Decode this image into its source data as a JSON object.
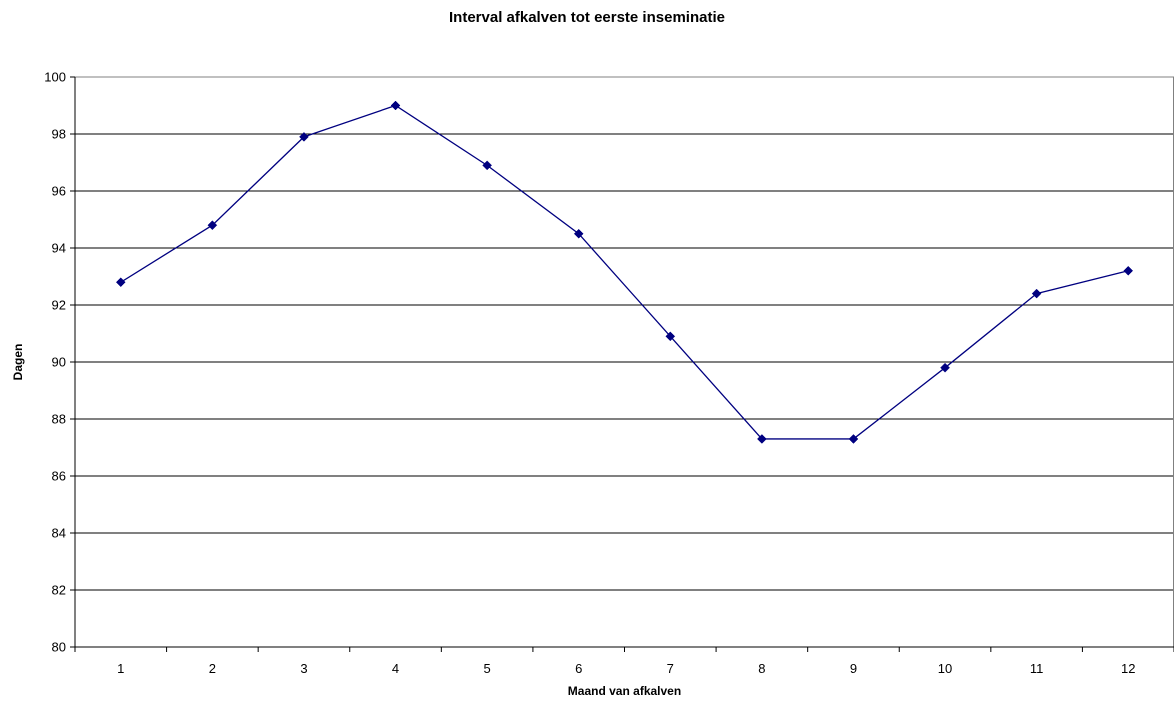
{
  "chart_data": {
    "type": "line",
    "title": "Interval afkalven tot eerste inseminatie",
    "xlabel": "Maand van afkalven",
    "ylabel": "Dagen",
    "categories": [
      "1",
      "2",
      "3",
      "4",
      "5",
      "6",
      "7",
      "8",
      "9",
      "10",
      "11",
      "12"
    ],
    "series": [
      {
        "values": [
          92.8,
          94.8,
          97.9,
          99.0,
          96.9,
          94.5,
          90.9,
          87.3,
          87.3,
          89.8,
          92.4,
          93.2
        ]
      }
    ],
    "ylim": [
      80,
      100
    ],
    "yticks": [
      80,
      82,
      84,
      86,
      88,
      90,
      92,
      94,
      96,
      98,
      100
    ],
    "grid": true,
    "legend": "none",
    "colors": {
      "line": "#000080",
      "marker": "#000080",
      "grid": "#000000"
    }
  }
}
